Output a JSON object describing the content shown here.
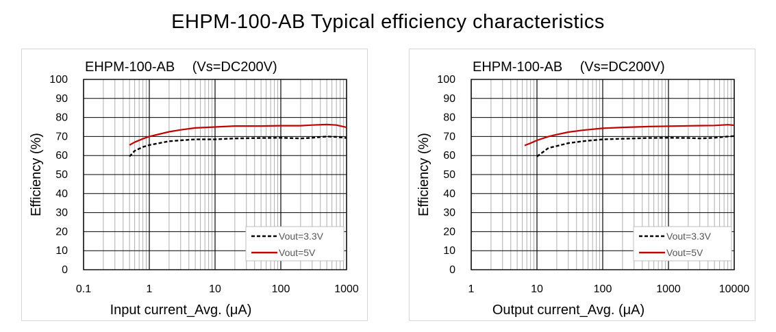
{
  "page_title": "EHPM-100-AB Typical efficiency characteristics",
  "chart_data": [
    {
      "type": "line",
      "title": "EHPM-100-AB　 (Vs=DC200V)",
      "xlabel": "Input current_Avg. (μA)",
      "ylabel": "Efficiency (%)",
      "x_scale": "log",
      "xlim": [
        0.1,
        1000
      ],
      "ylim": [
        0,
        100
      ],
      "x_ticks": [
        "0.1",
        "1",
        "10",
        "100",
        "1000"
      ],
      "y_ticks": [
        "0",
        "10",
        "20",
        "30",
        "40",
        "50",
        "60",
        "70",
        "80",
        "90",
        "100"
      ],
      "grid": true,
      "legend_position": "bottom-right",
      "series": [
        {
          "name": "Vout=3.3V",
          "style": "dashed",
          "color": "#000000",
          "x": [
            0.5,
            0.6,
            0.8,
            1,
            2,
            3,
            5,
            10,
            20,
            50,
            100,
            200,
            300,
            500,
            700,
            1000
          ],
          "y": [
            59.5,
            62.5,
            64.5,
            65.5,
            67.5,
            68,
            68.5,
            68.5,
            69,
            69.2,
            69.3,
            69.0,
            69.3,
            70.0,
            69.8,
            69.2
          ]
        },
        {
          "name": "Vout=5V",
          "style": "solid",
          "color": "#c00000",
          "x": [
            0.5,
            0.6,
            0.8,
            1,
            2,
            3,
            5,
            10,
            20,
            50,
            100,
            200,
            300,
            500,
            700,
            1000
          ],
          "y": [
            65.5,
            67,
            68.8,
            70,
            72.5,
            73.5,
            74.5,
            75,
            75.5,
            75.5,
            75.7,
            75.7,
            76.0,
            76.3,
            76.0,
            74.8
          ]
        }
      ]
    },
    {
      "type": "line",
      "title": "EHPM-100-AB　 (Vs=DC200V)",
      "xlabel": "Output current_Avg. (μA)",
      "ylabel": "Efficiency (%)",
      "x_scale": "log",
      "xlim": [
        1,
        10000
      ],
      "ylim": [
        0,
        100
      ],
      "x_ticks": [
        "1",
        "10",
        "100",
        "1000",
        "10000"
      ],
      "y_ticks": [
        "0",
        "10",
        "20",
        "30",
        "40",
        "50",
        "60",
        "70",
        "80",
        "90",
        "100"
      ],
      "grid": true,
      "legend_position": "bottom-right",
      "series": [
        {
          "name": "Vout=3.3V",
          "style": "dashed",
          "color": "#000000",
          "x": [
            10,
            12,
            15,
            20,
            30,
            50,
            100,
            200,
            500,
            1000,
            2000,
            3000,
            5000,
            8000,
            10000
          ],
          "y": [
            59.5,
            61.5,
            64,
            65,
            66.5,
            67.5,
            68.5,
            68.8,
            69.2,
            69.3,
            69.2,
            69.0,
            69.3,
            70.0,
            70.2
          ]
        },
        {
          "name": "Vout=5V",
          "style": "solid",
          "color": "#c00000",
          "x": [
            6.5,
            8,
            10,
            15,
            20,
            30,
            50,
            100,
            200,
            500,
            1000,
            2000,
            5000,
            8000,
            10000
          ],
          "y": [
            65.3,
            66.5,
            68,
            70,
            71,
            72.3,
            73.3,
            74.3,
            74.8,
            75.2,
            75.4,
            75.6,
            75.8,
            76.2,
            75.9
          ]
        }
      ]
    }
  ]
}
